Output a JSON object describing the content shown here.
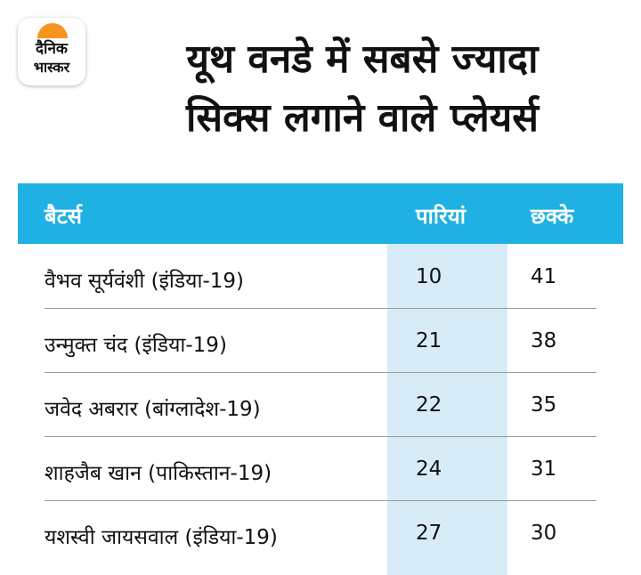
{
  "logo": {
    "line1": "दैनिक",
    "line2": "भास्कर",
    "accent": "#f7941d"
  },
  "title": {
    "line1": "यूथ वनडे में सबसे ज्यादा",
    "line2": "सिक्स लगाने वाले प्लेयर्स"
  },
  "table": {
    "header_color": "#1fb0e4",
    "highlight_color": "#d8ecf8",
    "columns": [
      "बैटर्स",
      "पारियां",
      "छक्के"
    ],
    "rows": [
      {
        "batter": "वैभव सूर्यवंशी (इंडिया-19)",
        "innings": "10",
        "sixes": "41"
      },
      {
        "batter": "उन्मुक्त चंद (इंडिया-19)",
        "innings": "21",
        "sixes": "38"
      },
      {
        "batter": "जवेद अबरार (बांग्लादेश-19)",
        "innings": "22",
        "sixes": "35"
      },
      {
        "batter": "शाहजैब खान (पाकिस्तान-19)",
        "innings": "24",
        "sixes": "31"
      },
      {
        "batter": "यशस्वी जायसवाल (इंडिया-19)",
        "innings": "27",
        "sixes": "30"
      }
    ]
  }
}
